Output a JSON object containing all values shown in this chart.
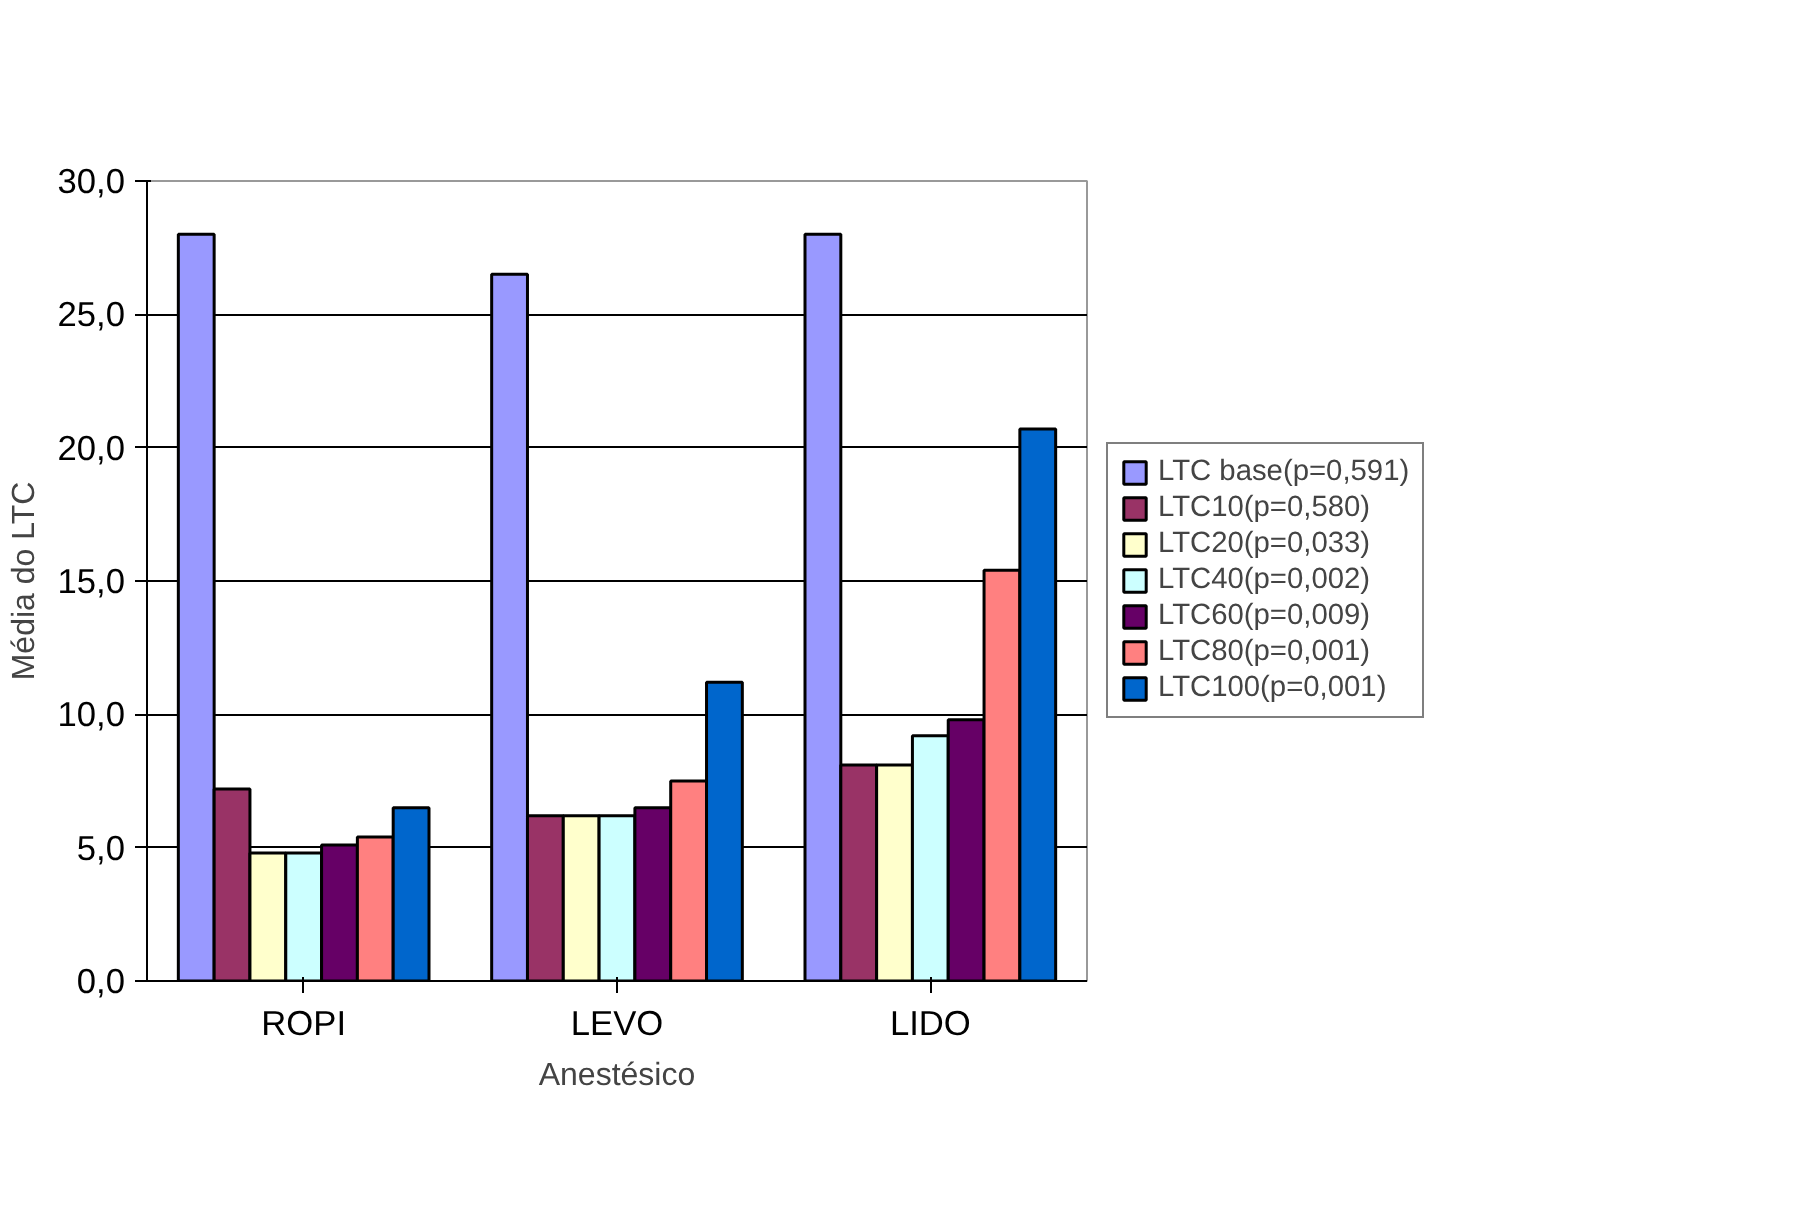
{
  "chart_data": {
    "type": "bar",
    "xlabel": "Anestésico",
    "ylabel": "Média do LTC",
    "categories": [
      "ROPI",
      "LEVO",
      "LIDO"
    ],
    "series": [
      {
        "name": "LTC base(p=0,591)",
        "color": "#9999ff",
        "values": [
          28.0,
          26.5,
          28.0
        ]
      },
      {
        "name": "LTC10(p=0,580)",
        "color": "#993366",
        "values": [
          7.2,
          6.2,
          8.1
        ]
      },
      {
        "name": "LTC20(p=0,033)",
        "color": "#ffffcc",
        "values": [
          4.8,
          6.2,
          8.1
        ]
      },
      {
        "name": "LTC40(p=0,002)",
        "color": "#ccffff",
        "values": [
          4.8,
          6.2,
          9.2
        ]
      },
      {
        "name": "LTC60(p=0,009)",
        "color": "#660066",
        "values": [
          5.1,
          6.5,
          9.8
        ]
      },
      {
        "name": "LTC80(p=0,001)",
        "color": "#ff8080",
        "values": [
          5.4,
          7.5,
          15.4
        ]
      },
      {
        "name": "LTC100(p=0,001)",
        "color": "#0066cc",
        "values": [
          6.5,
          11.2,
          20.7
        ]
      }
    ],
    "ylim": [
      0,
      30
    ],
    "yticks": [
      {
        "value": 0,
        "label": "0,0"
      },
      {
        "value": 5,
        "label": "5,0"
      },
      {
        "value": 10,
        "label": "10,0"
      },
      {
        "value": 15,
        "label": "15,0"
      },
      {
        "value": 20,
        "label": "20,0"
      },
      {
        "value": 25,
        "label": "25,0"
      },
      {
        "value": 30,
        "label": "30,0"
      }
    ],
    "grid": "y",
    "legend": "right"
  }
}
